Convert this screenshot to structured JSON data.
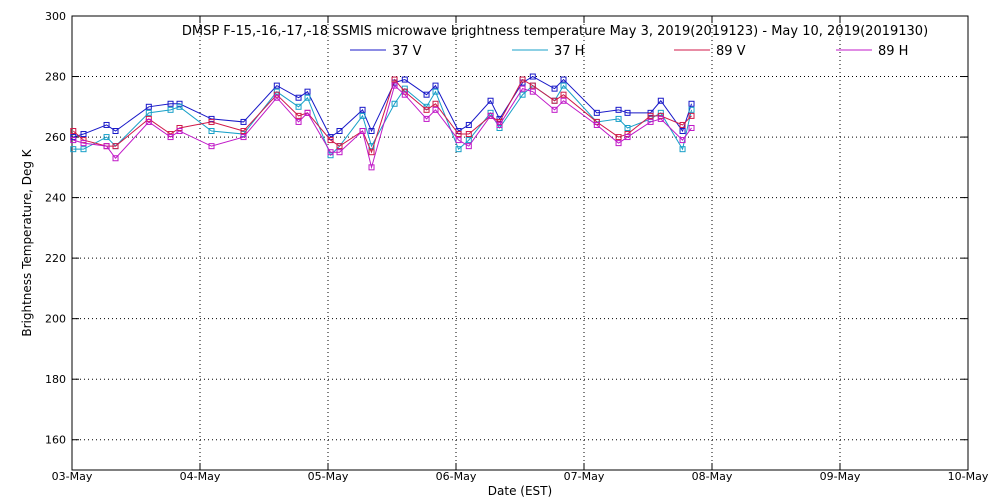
{
  "chart_data": {
    "type": "line",
    "title": "DMSP F-15,-16,-17,-18 SSMIS microwave brightness temperature May  3, 2019(2019123) - May 10, 2019(2019130)",
    "xlabel": "Date (EST)",
    "ylabel": "Brightness Temperature, Deg K",
    "xlim": [
      0,
      7
    ],
    "ylim": [
      150,
      300
    ],
    "grid": true,
    "legend_position": "top",
    "x_ticks": [
      {
        "value": 0,
        "label": "03-May"
      },
      {
        "value": 1,
        "label": "04-May"
      },
      {
        "value": 2,
        "label": "05-May"
      },
      {
        "value": 3,
        "label": "06-May"
      },
      {
        "value": 4,
        "label": "07-May"
      },
      {
        "value": 5,
        "label": "08-May"
      },
      {
        "value": 6,
        "label": "09-May"
      },
      {
        "value": 7,
        "label": "10-May"
      }
    ],
    "y_ticks": [
      {
        "value": 160,
        "label": "160"
      },
      {
        "value": 180,
        "label": "180"
      },
      {
        "value": 200,
        "label": "200"
      },
      {
        "value": 220,
        "label": "220"
      },
      {
        "value": 240,
        "label": "240"
      },
      {
        "value": 260,
        "label": "260"
      },
      {
        "value": 280,
        "label": "280"
      },
      {
        "value": 300,
        "label": "300"
      }
    ],
    "series": [
      {
        "name": "37 V",
        "color": "#1818c8",
        "points": [
          {
            "x": 0.01,
            "y": 260
          },
          {
            "x": 0.09,
            "y": 261
          },
          {
            "x": 0.27,
            "y": 264
          },
          {
            "x": 0.34,
            "y": 262
          },
          {
            "x": 0.6,
            "y": 270
          },
          {
            "x": 0.77,
            "y": 271
          },
          {
            "x": 0.84,
            "y": 271
          },
          {
            "x": 1.09,
            "y": 266
          },
          {
            "x": 1.34,
            "y": 265
          },
          {
            "x": 1.6,
            "y": 277
          },
          {
            "x": 1.77,
            "y": 273
          },
          {
            "x": 1.84,
            "y": 275
          },
          {
            "x": 2.02,
            "y": 260
          },
          {
            "x": 2.09,
            "y": 262
          },
          {
            "x": 2.27,
            "y": 269
          },
          {
            "x": 2.34,
            "y": 262
          },
          {
            "x": 2.52,
            "y": 278
          },
          {
            "x": 2.6,
            "y": 279
          },
          {
            "x": 2.77,
            "y": 274
          },
          {
            "x": 2.84,
            "y": 277
          },
          {
            "x": 3.02,
            "y": 262
          },
          {
            "x": 3.1,
            "y": 264
          },
          {
            "x": 3.27,
            "y": 272
          },
          {
            "x": 3.34,
            "y": 266
          },
          {
            "x": 3.52,
            "y": 278
          },
          {
            "x": 3.6,
            "y": 280
          },
          {
            "x": 3.77,
            "y": 276
          },
          {
            "x": 3.84,
            "y": 279
          },
          {
            "x": 4.1,
            "y": 268
          },
          {
            "x": 4.27,
            "y": 269
          },
          {
            "x": 4.34,
            "y": 268
          },
          {
            "x": 4.52,
            "y": 268
          },
          {
            "x": 4.6,
            "y": 272
          },
          {
            "x": 4.77,
            "y": 262
          },
          {
            "x": 4.84,
            "y": 271
          }
        ]
      },
      {
        "name": "37 H",
        "color": "#18a0c8",
        "points": [
          {
            "x": 0.01,
            "y": 256
          },
          {
            "x": 0.09,
            "y": 256
          },
          {
            "x": 0.27,
            "y": 260
          },
          {
            "x": 0.34,
            "y": 257
          },
          {
            "x": 0.6,
            "y": 268
          },
          {
            "x": 0.77,
            "y": 269
          },
          {
            "x": 0.84,
            "y": 270
          },
          {
            "x": 1.09,
            "y": 262
          },
          {
            "x": 1.34,
            "y": 261
          },
          {
            "x": 1.6,
            "y": 275
          },
          {
            "x": 1.77,
            "y": 270
          },
          {
            "x": 1.84,
            "y": 273
          },
          {
            "x": 2.02,
            "y": 254
          },
          {
            "x": 2.09,
            "y": 257
          },
          {
            "x": 2.27,
            "y": 267
          },
          {
            "x": 2.34,
            "y": 257
          },
          {
            "x": 2.52,
            "y": 271
          },
          {
            "x": 2.6,
            "y": 276
          },
          {
            "x": 2.77,
            "y": 270
          },
          {
            "x": 2.84,
            "y": 275
          },
          {
            "x": 3.02,
            "y": 256
          },
          {
            "x": 3.1,
            "y": 259
          },
          {
            "x": 3.27,
            "y": 268
          },
          {
            "x": 3.34,
            "y": 263
          },
          {
            "x": 3.52,
            "y": 274
          },
          {
            "x": 3.6,
            "y": 277
          },
          {
            "x": 3.77,
            "y": 272
          },
          {
            "x": 3.84,
            "y": 277
          },
          {
            "x": 4.1,
            "y": 265
          },
          {
            "x": 4.27,
            "y": 266
          },
          {
            "x": 4.34,
            "y": 263
          },
          {
            "x": 4.52,
            "y": 266
          },
          {
            "x": 4.6,
            "y": 268
          },
          {
            "x": 4.77,
            "y": 256
          },
          {
            "x": 4.84,
            "y": 269
          }
        ]
      },
      {
        "name": "89 V",
        "color": "#d01848",
        "points": [
          {
            "x": 0.01,
            "y": 262
          },
          {
            "x": 0.09,
            "y": 259
          },
          {
            "x": 0.27,
            "y": 257
          },
          {
            "x": 0.34,
            "y": 257
          },
          {
            "x": 0.6,
            "y": 266
          },
          {
            "x": 0.77,
            "y": 261
          },
          {
            "x": 0.84,
            "y": 263
          },
          {
            "x": 1.09,
            "y": 265
          },
          {
            "x": 1.34,
            "y": 262
          },
          {
            "x": 1.6,
            "y": 274
          },
          {
            "x": 1.77,
            "y": 267
          },
          {
            "x": 1.84,
            "y": 268
          },
          {
            "x": 2.02,
            "y": 259
          },
          {
            "x": 2.09,
            "y": 257
          },
          {
            "x": 2.27,
            "y": 262
          },
          {
            "x": 2.34,
            "y": 255
          },
          {
            "x": 2.52,
            "y": 279
          },
          {
            "x": 2.6,
            "y": 275
          },
          {
            "x": 2.77,
            "y": 269
          },
          {
            "x": 2.84,
            "y": 271
          },
          {
            "x": 3.02,
            "y": 261
          },
          {
            "x": 3.1,
            "y": 261
          },
          {
            "x": 3.27,
            "y": 267
          },
          {
            "x": 3.34,
            "y": 265
          },
          {
            "x": 3.52,
            "y": 279
          },
          {
            "x": 3.6,
            "y": 277
          },
          {
            "x": 3.77,
            "y": 272
          },
          {
            "x": 3.84,
            "y": 274
          },
          {
            "x": 4.1,
            "y": 265
          },
          {
            "x": 4.27,
            "y": 260
          },
          {
            "x": 4.34,
            "y": 261
          },
          {
            "x": 4.52,
            "y": 267
          },
          {
            "x": 4.6,
            "y": 267
          },
          {
            "x": 4.77,
            "y": 264
          },
          {
            "x": 4.84,
            "y": 267
          }
        ]
      },
      {
        "name": "89 H",
        "color": "#c018c8",
        "points": [
          {
            "x": 0.01,
            "y": 259
          },
          {
            "x": 0.09,
            "y": 258
          },
          {
            "x": 0.27,
            "y": 257
          },
          {
            "x": 0.34,
            "y": 253
          },
          {
            "x": 0.6,
            "y": 265
          },
          {
            "x": 0.77,
            "y": 260
          },
          {
            "x": 0.84,
            "y": 262
          },
          {
            "x": 1.09,
            "y": 257
          },
          {
            "x": 1.34,
            "y": 260
          },
          {
            "x": 1.6,
            "y": 273
          },
          {
            "x": 1.77,
            "y": 265
          },
          {
            "x": 1.84,
            "y": 268
          },
          {
            "x": 2.02,
            "y": 255
          },
          {
            "x": 2.09,
            "y": 255
          },
          {
            "x": 2.27,
            "y": 262
          },
          {
            "x": 2.34,
            "y": 250
          },
          {
            "x": 2.52,
            "y": 277
          },
          {
            "x": 2.6,
            "y": 274
          },
          {
            "x": 2.77,
            "y": 266
          },
          {
            "x": 2.84,
            "y": 269
          },
          {
            "x": 3.02,
            "y": 259
          },
          {
            "x": 3.1,
            "y": 257
          },
          {
            "x": 3.27,
            "y": 267
          },
          {
            "x": 3.34,
            "y": 264
          },
          {
            "x": 3.52,
            "y": 276
          },
          {
            "x": 3.6,
            "y": 275
          },
          {
            "x": 3.77,
            "y": 269
          },
          {
            "x": 3.84,
            "y": 272
          },
          {
            "x": 4.1,
            "y": 264
          },
          {
            "x": 4.27,
            "y": 258
          },
          {
            "x": 4.34,
            "y": 260
          },
          {
            "x": 4.52,
            "y": 265
          },
          {
            "x": 4.6,
            "y": 266
          },
          {
            "x": 4.77,
            "y": 259
          },
          {
            "x": 4.84,
            "y": 263
          }
        ]
      }
    ]
  }
}
